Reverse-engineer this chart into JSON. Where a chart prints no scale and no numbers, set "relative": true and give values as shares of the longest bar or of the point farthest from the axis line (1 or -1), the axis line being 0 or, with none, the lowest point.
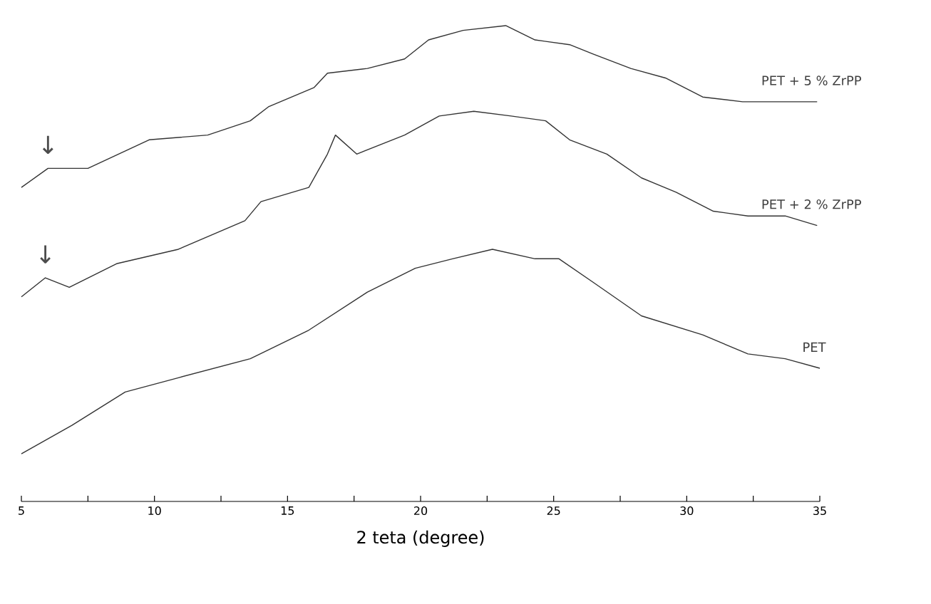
{
  "chart_data": {
    "type": "line",
    "relative": true,
    "xlabel": "2 teta (degree)",
    "xlim": [
      5,
      35
    ],
    "xticks": [
      5,
      {
        "value": 7.5,
        "label": null
      },
      10,
      {
        "value": 12.5,
        "label": null
      },
      15,
      {
        "value": 17.5,
        "label": null
      },
      20,
      {
        "value": 22.5,
        "label": null
      },
      25,
      {
        "value": 27.5,
        "label": null
      },
      30,
      {
        "value": 32.5,
        "label": null
      },
      35
    ],
    "series": [
      {
        "name": "PET + 5 % ZrPP",
        "color": "#333333",
        "x": [
          5,
          6,
          7.5,
          9.8,
          12,
          13.6,
          14.3,
          16,
          16.5,
          18,
          19.4,
          20.3,
          21.6,
          23.2,
          24.3,
          25.6,
          26.5,
          27.9,
          29.2,
          30.6,
          32.1,
          33.2,
          34.9
        ],
        "values": [
          0.66,
          0.7,
          0.7,
          0.76,
          0.77,
          0.8,
          0.83,
          0.87,
          0.9,
          0.91,
          0.93,
          0.97,
          0.99,
          1.0,
          0.97,
          0.96,
          0.94,
          0.91,
          0.89,
          0.85,
          0.84,
          0.84,
          0.84
        ]
      },
      {
        "name": "PET + 2 % ZrPP",
        "color": "#333333",
        "x": [
          5,
          5.9,
          6.8,
          8.6,
          10.9,
          13.4,
          14,
          15.8,
          16.5,
          16.8,
          17.6,
          19.4,
          20.7,
          22,
          23.4,
          24.7,
          25.6,
          27,
          28.3,
          29.6,
          31,
          32.3,
          33.7,
          34.9
        ],
        "values": [
          0.43,
          0.47,
          0.45,
          0.5,
          0.53,
          0.59,
          0.63,
          0.66,
          0.73,
          0.77,
          0.73,
          0.77,
          0.81,
          0.82,
          0.81,
          0.8,
          0.76,
          0.73,
          0.68,
          0.65,
          0.61,
          0.6,
          0.6,
          0.58
        ]
      },
      {
        "name": "PET",
        "color": "#333333",
        "x": [
          5,
          6.9,
          8.9,
          10.9,
          13.6,
          15.8,
          18,
          19.8,
          21.2,
          22.7,
          24.3,
          25.2,
          26.5,
          28.3,
          30.6,
          32.3,
          33.7,
          35
        ],
        "values": [
          0.1,
          0.16,
          0.23,
          0.26,
          0.3,
          0.36,
          0.44,
          0.49,
          0.51,
          0.53,
          0.51,
          0.51,
          0.46,
          0.39,
          0.35,
          0.31,
          0.3,
          0.28
        ]
      }
    ],
    "annotations": [
      "↓",
      "↓"
    ],
    "line_style": "solid",
    "grid": false,
    "legend": false
  }
}
